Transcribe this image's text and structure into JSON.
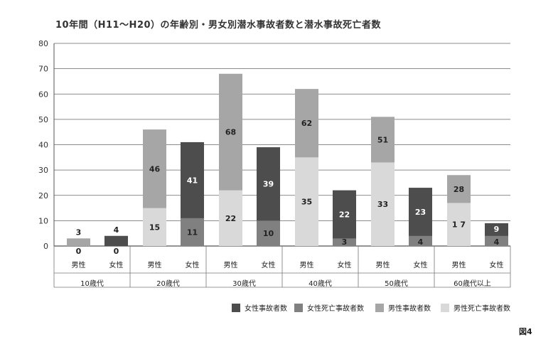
{
  "chart_data": {
    "type": "bar",
    "title": "10年間（H11〜H20）の年齢別・男女別潜水事故者数と潜水事故死亡者数",
    "ylim": [
      0,
      80
    ],
    "yticks": [
      0,
      10,
      20,
      30,
      40,
      50,
      60,
      70,
      80
    ],
    "groups": [
      {
        "label": "10歳代",
        "bars": [
          {
            "sex": "男性",
            "accidents": 3,
            "deaths": 0,
            "label_total": "3",
            "label_death": "0"
          },
          {
            "sex": "女性",
            "accidents": 4,
            "deaths": 0,
            "label_total": "4",
            "label_death": "0"
          }
        ]
      },
      {
        "label": "20歳代",
        "bars": [
          {
            "sex": "男性",
            "accidents": 46,
            "deaths": 15,
            "label_total": "46",
            "label_death": "15"
          },
          {
            "sex": "女性",
            "accidents": 41,
            "deaths": 11,
            "label_total": "41",
            "label_death": "11"
          }
        ]
      },
      {
        "label": "30歳代",
        "bars": [
          {
            "sex": "男性",
            "accidents": 68,
            "deaths": 22,
            "label_total": "68",
            "label_death": "22"
          },
          {
            "sex": "女性",
            "accidents": 39,
            "deaths": 10,
            "label_total": "39",
            "label_death": "10"
          }
        ]
      },
      {
        "label": "40歳代",
        "bars": [
          {
            "sex": "男性",
            "accidents": 62,
            "deaths": 35,
            "label_total": "62",
            "label_death": "35"
          },
          {
            "sex": "女性",
            "accidents": 22,
            "deaths": 3,
            "label_total": "22",
            "label_death": "3"
          }
        ]
      },
      {
        "label": "50歳代",
        "bars": [
          {
            "sex": "男性",
            "accidents": 51,
            "deaths": 33,
            "label_total": "51",
            "label_death": "33"
          },
          {
            "sex": "女性",
            "accidents": 23,
            "deaths": 4,
            "label_total": "23",
            "label_death": "4"
          }
        ]
      },
      {
        "label": "60歳代以上",
        "bars": [
          {
            "sex": "男性",
            "accidents": 28,
            "deaths": 17,
            "label_total": "28",
            "label_death": "1 7"
          },
          {
            "sex": "女性",
            "accidents": 9,
            "deaths": 4,
            "label_total": "9",
            "label_death": "4"
          }
        ]
      }
    ],
    "legend": [
      {
        "key": "female_accidents",
        "label": "女性事故者数",
        "color": "#4d4d4d"
      },
      {
        "key": "female_deaths",
        "label": "女性死亡事故者数",
        "color": "#808080"
      },
      {
        "key": "male_accidents",
        "label": "男性事故者数",
        "color": "#a6a6a6"
      },
      {
        "key": "male_deaths",
        "label": "男性死亡事故者数",
        "color": "#d9d9d9"
      }
    ],
    "legend_position": "bottom-right",
    "grid": true
  },
  "figure_label": "図4"
}
